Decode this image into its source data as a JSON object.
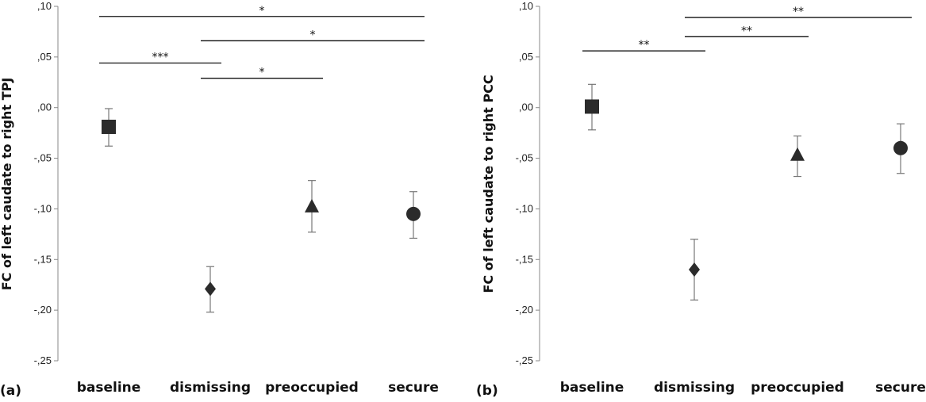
{
  "chart_data": [
    {
      "type": "scatter",
      "panel_label": "(a)",
      "ylabel": "FC of left caudate to right TPJ",
      "ylim": [
        -0.25,
        0.1
      ],
      "yticks": [
        ",10",
        ",05",
        ",00",
        "-,05",
        "-,10",
        "-,15",
        "-,20",
        "-,25"
      ],
      "ytick_values": [
        0.1,
        0.05,
        0.0,
        -0.05,
        -0.1,
        -0.15,
        -0.2,
        -0.25
      ],
      "categories": [
        "baseline",
        "dismissing",
        "preoccupied",
        "secure"
      ],
      "values": [
        -0.019,
        -0.179,
        -0.098,
        -0.105
      ],
      "err_upper": [
        -0.001,
        -0.157,
        -0.072,
        -0.083
      ],
      "err_lower": [
        -0.038,
        -0.202,
        -0.123,
        -0.129
      ],
      "markers": [
        "square",
        "diamond",
        "triangle",
        "circle"
      ],
      "significance": [
        {
          "from": 0,
          "to": 3,
          "label": "*",
          "y": 0.09
        },
        {
          "from": 1,
          "to": 3,
          "label": "*",
          "y": 0.066
        },
        {
          "from": 0,
          "to": 1,
          "label": "***",
          "y": 0.044
        },
        {
          "from": 1,
          "to": 2,
          "label": "*",
          "y": 0.029
        }
      ],
      "grid": false
    },
    {
      "type": "scatter",
      "panel_label": "(b)",
      "ylabel": "FC of left caudate to right PCC",
      "ylim": [
        -0.25,
        0.1
      ],
      "yticks": [
        ",10",
        ",05",
        ",00",
        "-,05",
        "-,10",
        "-,15",
        "-,20",
        "-,25"
      ],
      "ytick_values": [
        0.1,
        0.05,
        0.0,
        -0.05,
        -0.1,
        -0.15,
        -0.2,
        -0.25
      ],
      "categories": [
        "baseline",
        "dismissing",
        "preoccupied",
        "secure"
      ],
      "values": [
        0.001,
        -0.16,
        -0.047,
        -0.04
      ],
      "err_upper": [
        0.023,
        -0.13,
        -0.028,
        -0.016
      ],
      "err_lower": [
        -0.022,
        -0.19,
        -0.068,
        -0.065
      ],
      "markers": [
        "square",
        "diamond",
        "triangle",
        "circle"
      ],
      "significance": [
        {
          "from": 1,
          "to": 3,
          "label": "**",
          "y": 0.089
        },
        {
          "from": 1,
          "to": 2,
          "label": "**",
          "y": 0.07
        },
        {
          "from": 0,
          "to": 1,
          "label": "**",
          "y": 0.056
        }
      ],
      "grid": false
    }
  ]
}
